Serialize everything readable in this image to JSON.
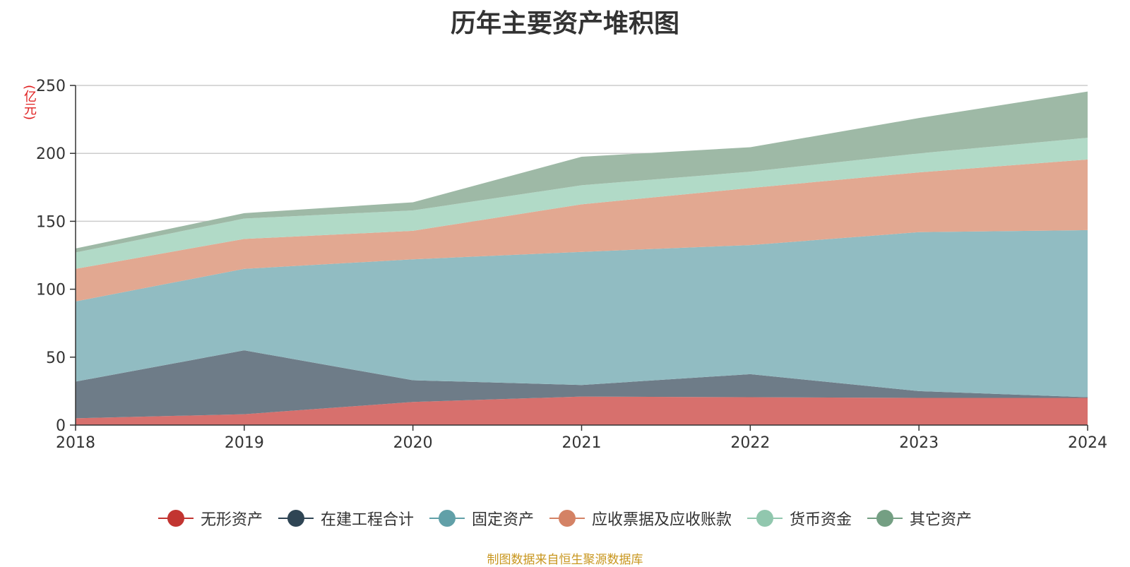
{
  "chart_data": {
    "type": "area",
    "stacked": true,
    "title": "历年主要资产堆积图",
    "unit_label": "(亿元)",
    "x": [
      "2018",
      "2019",
      "2020",
      "2021",
      "2022",
      "2023",
      "2024"
    ],
    "ylim": [
      0,
      250
    ],
    "yticks": [
      0,
      50,
      100,
      150,
      200,
      250
    ],
    "grid": true,
    "legend_position": "bottom",
    "series": [
      {
        "name": "无形资产",
        "color": "#c23531",
        "area_color": "#d7706d",
        "values": [
          5,
          8,
          17,
          21,
          20.5,
          20,
          20
        ]
      },
      {
        "name": "在建工程合计",
        "color": "#2f4554",
        "area_color": "#6e7c88",
        "values": [
          27,
          47,
          16,
          8.5,
          17,
          5,
          0.5
        ]
      },
      {
        "name": "固定资产",
        "color": "#61a0a8",
        "area_color": "#91bcc2",
        "values": [
          59,
          60,
          89,
          98,
          95,
          117,
          123
        ]
      },
      {
        "name": "应收票据及应收账款",
        "color": "#d48265",
        "area_color": "#e2a891",
        "values": [
          24,
          22,
          21,
          35,
          42,
          44,
          52
        ]
      },
      {
        "name": "货币资金",
        "color": "#91c7ae",
        "area_color": "#b1dac7",
        "values": [
          12,
          15,
          15,
          14,
          12,
          14,
          16
        ]
      },
      {
        "name": "其它资产",
        "color": "#749f83",
        "area_color": "#9eb9a6",
        "values": [
          3,
          4,
          6,
          21,
          18,
          26,
          34
        ]
      }
    ],
    "source_note": "制图数据来自恒生聚源数据库"
  }
}
